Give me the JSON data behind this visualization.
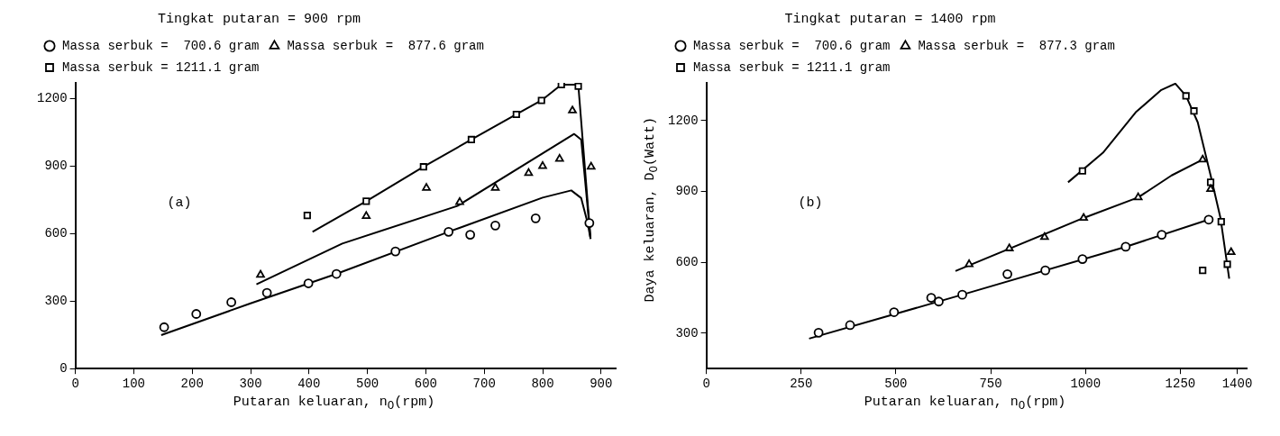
{
  "chart_data": [
    {
      "type": "scatter",
      "annotations": [
        "(a)"
      ],
      "xlabel": "Putaran keluaran, n$_{O}$(rpm)",
      "legend_title": "Tingkat putaran = 900 rpm",
      "legend": "top left",
      "grid": false,
      "xlim": [
        0,
        925
      ],
      "xticks": [
        0,
        100,
        200,
        300,
        400,
        500,
        600,
        700,
        800,
        900
      ],
      "ylim": [
        0,
        1270
      ],
      "yticks": [
        0,
        300,
        600,
        900,
        1200
      ],
      "series": [
        {
          "name": "Massa serbuk =  700.6 gram",
          "type": "scatter",
          "marker": "circle",
          "color": "#000000",
          "x": [
            152,
            207,
            267,
            328,
            399,
            447,
            548,
            639,
            676,
            719,
            788,
            880
          ],
          "values": [
            184,
            243,
            295,
            337,
            379,
            421,
            521,
            608,
            595,
            636,
            668,
            647
          ]
        },
        {
          "name": "Massa serbuk =  877.6 gram",
          "type": "scatter",
          "marker": "triangle",
          "color": "#000000",
          "x": [
            317,
            498,
            601,
            658,
            719,
            776,
            800,
            829,
            851,
            883
          ],
          "values": [
            417,
            678,
            803,
            740,
            803,
            869,
            900,
            932,
            1147,
            897
          ]
        },
        {
          "name": "Massa serbuk = 1211.1 gram",
          "type": "scatter",
          "marker": "square",
          "color": "#000000",
          "x": [
            397,
            498,
            596,
            678,
            755,
            798,
            832,
            861
          ],
          "values": [
            681,
            744,
            897,
            1018,
            1130,
            1192,
            1262,
            1255
          ]
        },
        {
          "type": "line",
          "marker": "none",
          "color": "#000000",
          "x": [
            147,
            300,
            447,
            639,
            800,
            849,
            866,
            877,
            882
          ],
          "values": [
            149,
            290,
            421,
            608,
            760,
            792,
            758,
            647,
            577
          ]
        },
        {
          "type": "line",
          "marker": "none",
          "color": "#000000",
          "x": [
            310,
            457,
            654,
            854,
            866,
            872,
            882
          ],
          "values": [
            375,
            556,
            723,
            1043,
            1018,
            855,
            577
          ]
        },
        {
          "type": "line",
          "marker": "none",
          "color": "#000000",
          "x": [
            406,
            498,
            596,
            678,
            755,
            798,
            832,
            861,
            882
          ],
          "values": [
            608,
            744,
            897,
            1018,
            1130,
            1192,
            1262,
            1262,
            577
          ]
        }
      ]
    },
    {
      "type": "scatter",
      "annotations": [
        "(b)"
      ],
      "xlabel": "Putaran keluaran, n$_{O}$(rpm)",
      "ylabel": "Daya keluaran, D$_{O}$(Watt)",
      "legend_title": "Tingkat putaran = 1400 rpm",
      "legend": "top left",
      "grid": false,
      "xlim": [
        0,
        1425
      ],
      "xticks": [
        0,
        250,
        500,
        750,
        1000,
        1250,
        1400
      ],
      "ylim": [
        150,
        1360
      ],
      "yticks": [
        300,
        600,
        900,
        1200
      ],
      "series": [
        {
          "name": "Massa serbuk =  700.6 gram",
          "type": "scatter",
          "marker": "circle",
          "color": "#000000",
          "x": [
            296,
            379,
            495,
            593,
            613,
            675,
            794,
            894,
            992,
            1106,
            1201,
            1325
          ],
          "values": [
            302,
            334,
            389,
            450,
            434,
            463,
            550,
            566,
            614,
            666,
            717,
            781
          ]
        },
        {
          "name": "Massa serbuk =  877.3 gram",
          "type": "scatter",
          "marker": "triangle",
          "color": "#000000",
          "x": [
            693,
            799,
            892,
            995,
            1139,
            1309,
            1330,
            1384
          ],
          "values": [
            592,
            659,
            707,
            788,
            875,
            1035,
            910,
            643
          ]
        },
        {
          "name": "Massa serbuk = 1211.1 gram",
          "type": "scatter",
          "marker": "square",
          "color": "#000000",
          "x": [
            992,
            1265,
            1286,
            1330,
            1358,
            1374,
            1309
          ],
          "values": [
            987,
            1305,
            1241,
            939,
            772,
            592,
            566
          ]
        },
        {
          "type": "line",
          "marker": "none",
          "color": "#000000",
          "x": [
            271,
            675,
            1106,
            1325
          ],
          "values": [
            277,
            463,
            666,
            781
          ]
        },
        {
          "type": "line",
          "marker": "none",
          "color": "#000000",
          "x": [
            657,
            995,
            1139,
            1227,
            1309
          ],
          "values": [
            563,
            788,
            875,
            968,
            1035
          ]
        },
        {
          "type": "line",
          "marker": "none",
          "color": "#000000",
          "x": [
            954,
            1046,
            1134,
            1200,
            1237,
            1265,
            1296,
            1330,
            1356,
            1379
          ],
          "values": [
            939,
            1064,
            1238,
            1330,
            1357,
            1305,
            1193,
            968,
            788,
            531
          ]
        }
      ]
    }
  ]
}
